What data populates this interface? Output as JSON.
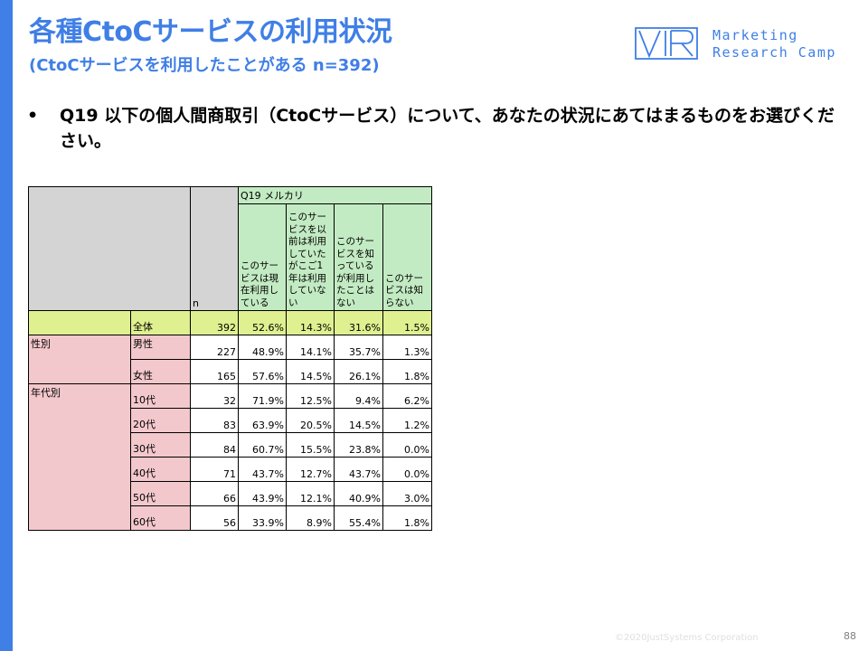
{
  "header": {
    "title": "各種CtoCサービスの利用状況",
    "subtitle": "(CtoCサービスを利用したことがある n=392)"
  },
  "logo": {
    "line1": "Marketing",
    "line2": "Research Camp",
    "accent": "#3f7fe6"
  },
  "question": {
    "bullet": "•",
    "text": "Q19 以下の個人間商取引（CtoCサービス）について、あなたの状況にあてはまるものをお選びください。"
  },
  "table": {
    "question_label": "Q19 メルカリ",
    "n_label": "n",
    "options": [
      "このサービスは現在利用している",
      "このサービスを以前は利用していたがこご1年は利用していない",
      "このサービスを知っているが利用したことはない",
      "このサービスは知らない"
    ],
    "total": {
      "label": "全体",
      "n": "392",
      "values": [
        "52.6%",
        "14.3%",
        "31.6%",
        "1.5%"
      ]
    },
    "groups": [
      {
        "name": "性別",
        "rows": [
          {
            "label": "男性",
            "n": "227",
            "values": [
              "48.9%",
              "14.1%",
              "35.7%",
              "1.3%"
            ]
          },
          {
            "label": "女性",
            "n": "165",
            "values": [
              "57.6%",
              "14.5%",
              "26.1%",
              "1.8%"
            ]
          }
        ]
      },
      {
        "name": "年代別",
        "rows": [
          {
            "label": "10代",
            "n": "32",
            "values": [
              "71.9%",
              "12.5%",
              "9.4%",
              "6.2%"
            ]
          },
          {
            "label": "20代",
            "n": "83",
            "values": [
              "63.9%",
              "20.5%",
              "14.5%",
              "1.2%"
            ]
          },
          {
            "label": "30代",
            "n": "84",
            "values": [
              "60.7%",
              "15.5%",
              "23.8%",
              "0.0%"
            ]
          },
          {
            "label": "40代",
            "n": "71",
            "values": [
              "43.7%",
              "12.7%",
              "43.7%",
              "0.0%"
            ]
          },
          {
            "label": "50代",
            "n": "66",
            "values": [
              "43.9%",
              "12.1%",
              "40.9%",
              "3.0%"
            ]
          },
          {
            "label": "60代",
            "n": "56",
            "values": [
              "33.9%",
              "8.9%",
              "55.4%",
              "1.8%"
            ]
          }
        ]
      }
    ],
    "colors": {
      "header_gray": "#d4d4d4",
      "header_green": "#c3ebc3",
      "total_lime": "#dff090",
      "group_pink": "#f3c8cc"
    }
  },
  "footer": {
    "copyright": "©2020JustSystems Corporation",
    "page": "88"
  }
}
